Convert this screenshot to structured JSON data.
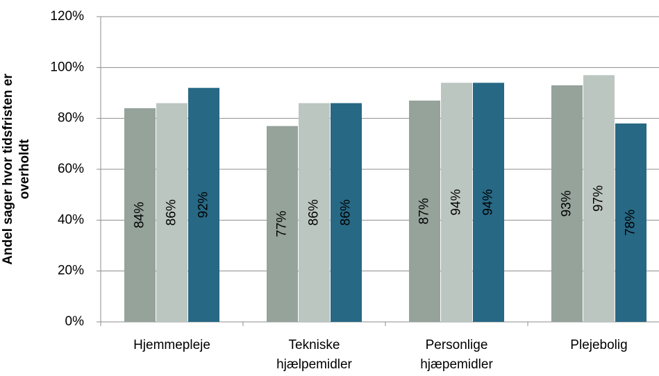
{
  "chart_data": {
    "type": "bar",
    "y_label": "Andel sager hvor tidsfristen er\noverholdt",
    "categories": [
      "Hjemmepleje",
      "Tekniske\nhjælpemidler",
      "Personlige\nhjæpemidler",
      "Plejebolig"
    ],
    "series": [
      {
        "color": "#95a39b",
        "values": [
          84,
          77,
          87,
          93
        ],
        "value_labels": [
          "84%",
          "77%",
          "87%",
          "93%"
        ]
      },
      {
        "color": "#bcc6c1",
        "values": [
          86,
          86,
          94,
          97
        ],
        "value_labels": [
          "86%",
          "86%",
          "94%",
          "97%"
        ]
      },
      {
        "color": "#276884",
        "values": [
          92,
          86,
          94,
          78
        ],
        "value_labels": [
          "92%",
          "86%",
          "94%",
          "78%"
        ]
      }
    ],
    "ylim": [
      0,
      120
    ],
    "yticks": [
      {
        "value": 0,
        "label": "0%"
      },
      {
        "value": 20,
        "label": "20%"
      },
      {
        "value": 40,
        "label": "40%"
      },
      {
        "value": 60,
        "label": "60%"
      },
      {
        "value": 80,
        "label": "80%"
      },
      {
        "value": 100,
        "label": "100%"
      },
      {
        "value": 120,
        "label": "120%"
      }
    ],
    "grid": true
  }
}
